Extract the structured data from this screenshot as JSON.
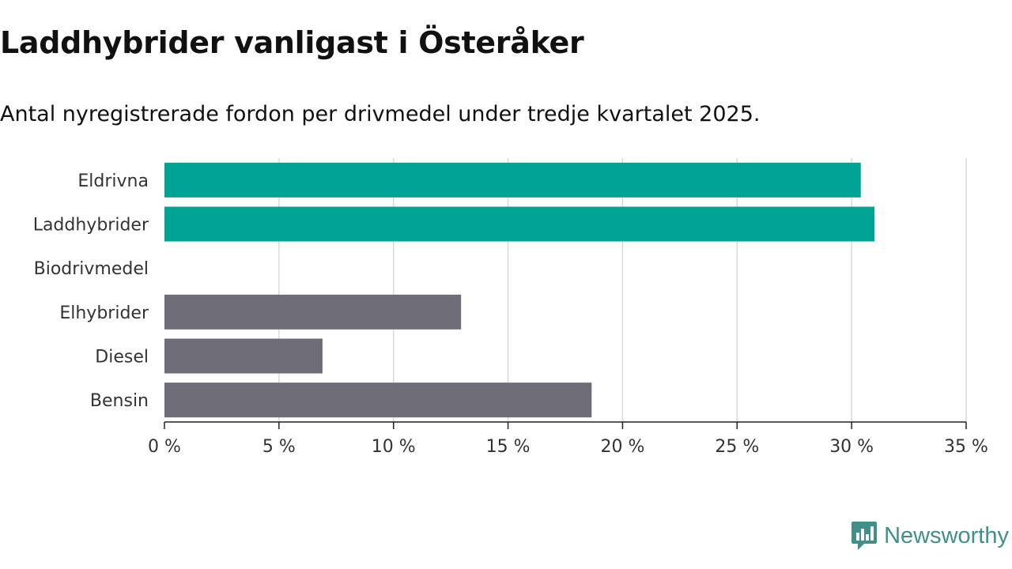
{
  "header": {
    "title": "Laddhybrider vanligast i Österåker",
    "subtitle": "Antal nyregistrerade fordon per drivmedel under tredje kvartalet 2025."
  },
  "brand": {
    "name": "Newsworthy",
    "color": "#3f8f8a"
  },
  "chart_data": {
    "type": "bar",
    "orientation": "horizontal",
    "title": "Laddhybrider vanligast i Österåker",
    "subtitle": "Antal nyregistrerade fordon per drivmedel under tredje kvartalet 2025.",
    "xlabel": "",
    "ylabel": "",
    "unit": "%",
    "xlim": [
      0,
      35
    ],
    "ticks": [
      0,
      5,
      10,
      15,
      20,
      25,
      30,
      35
    ],
    "tick_labels": [
      "0 %",
      "5 %",
      "10 %",
      "15 %",
      "20 %",
      "25 %",
      "30 %",
      "35 %"
    ],
    "grid": true,
    "legend": "none",
    "categories": [
      "Eldrivna",
      "Laddhybrider",
      "Biodrivmedel",
      "Elhybrider",
      "Diesel",
      "Bensin"
    ],
    "values": [
      30.4,
      31.0,
      0,
      12.95,
      6.9,
      18.65
    ],
    "colors": [
      "#00a396",
      "#00a396",
      "#00a396",
      "#6e6d75",
      "#6e6d75",
      "#6e6d75"
    ]
  }
}
